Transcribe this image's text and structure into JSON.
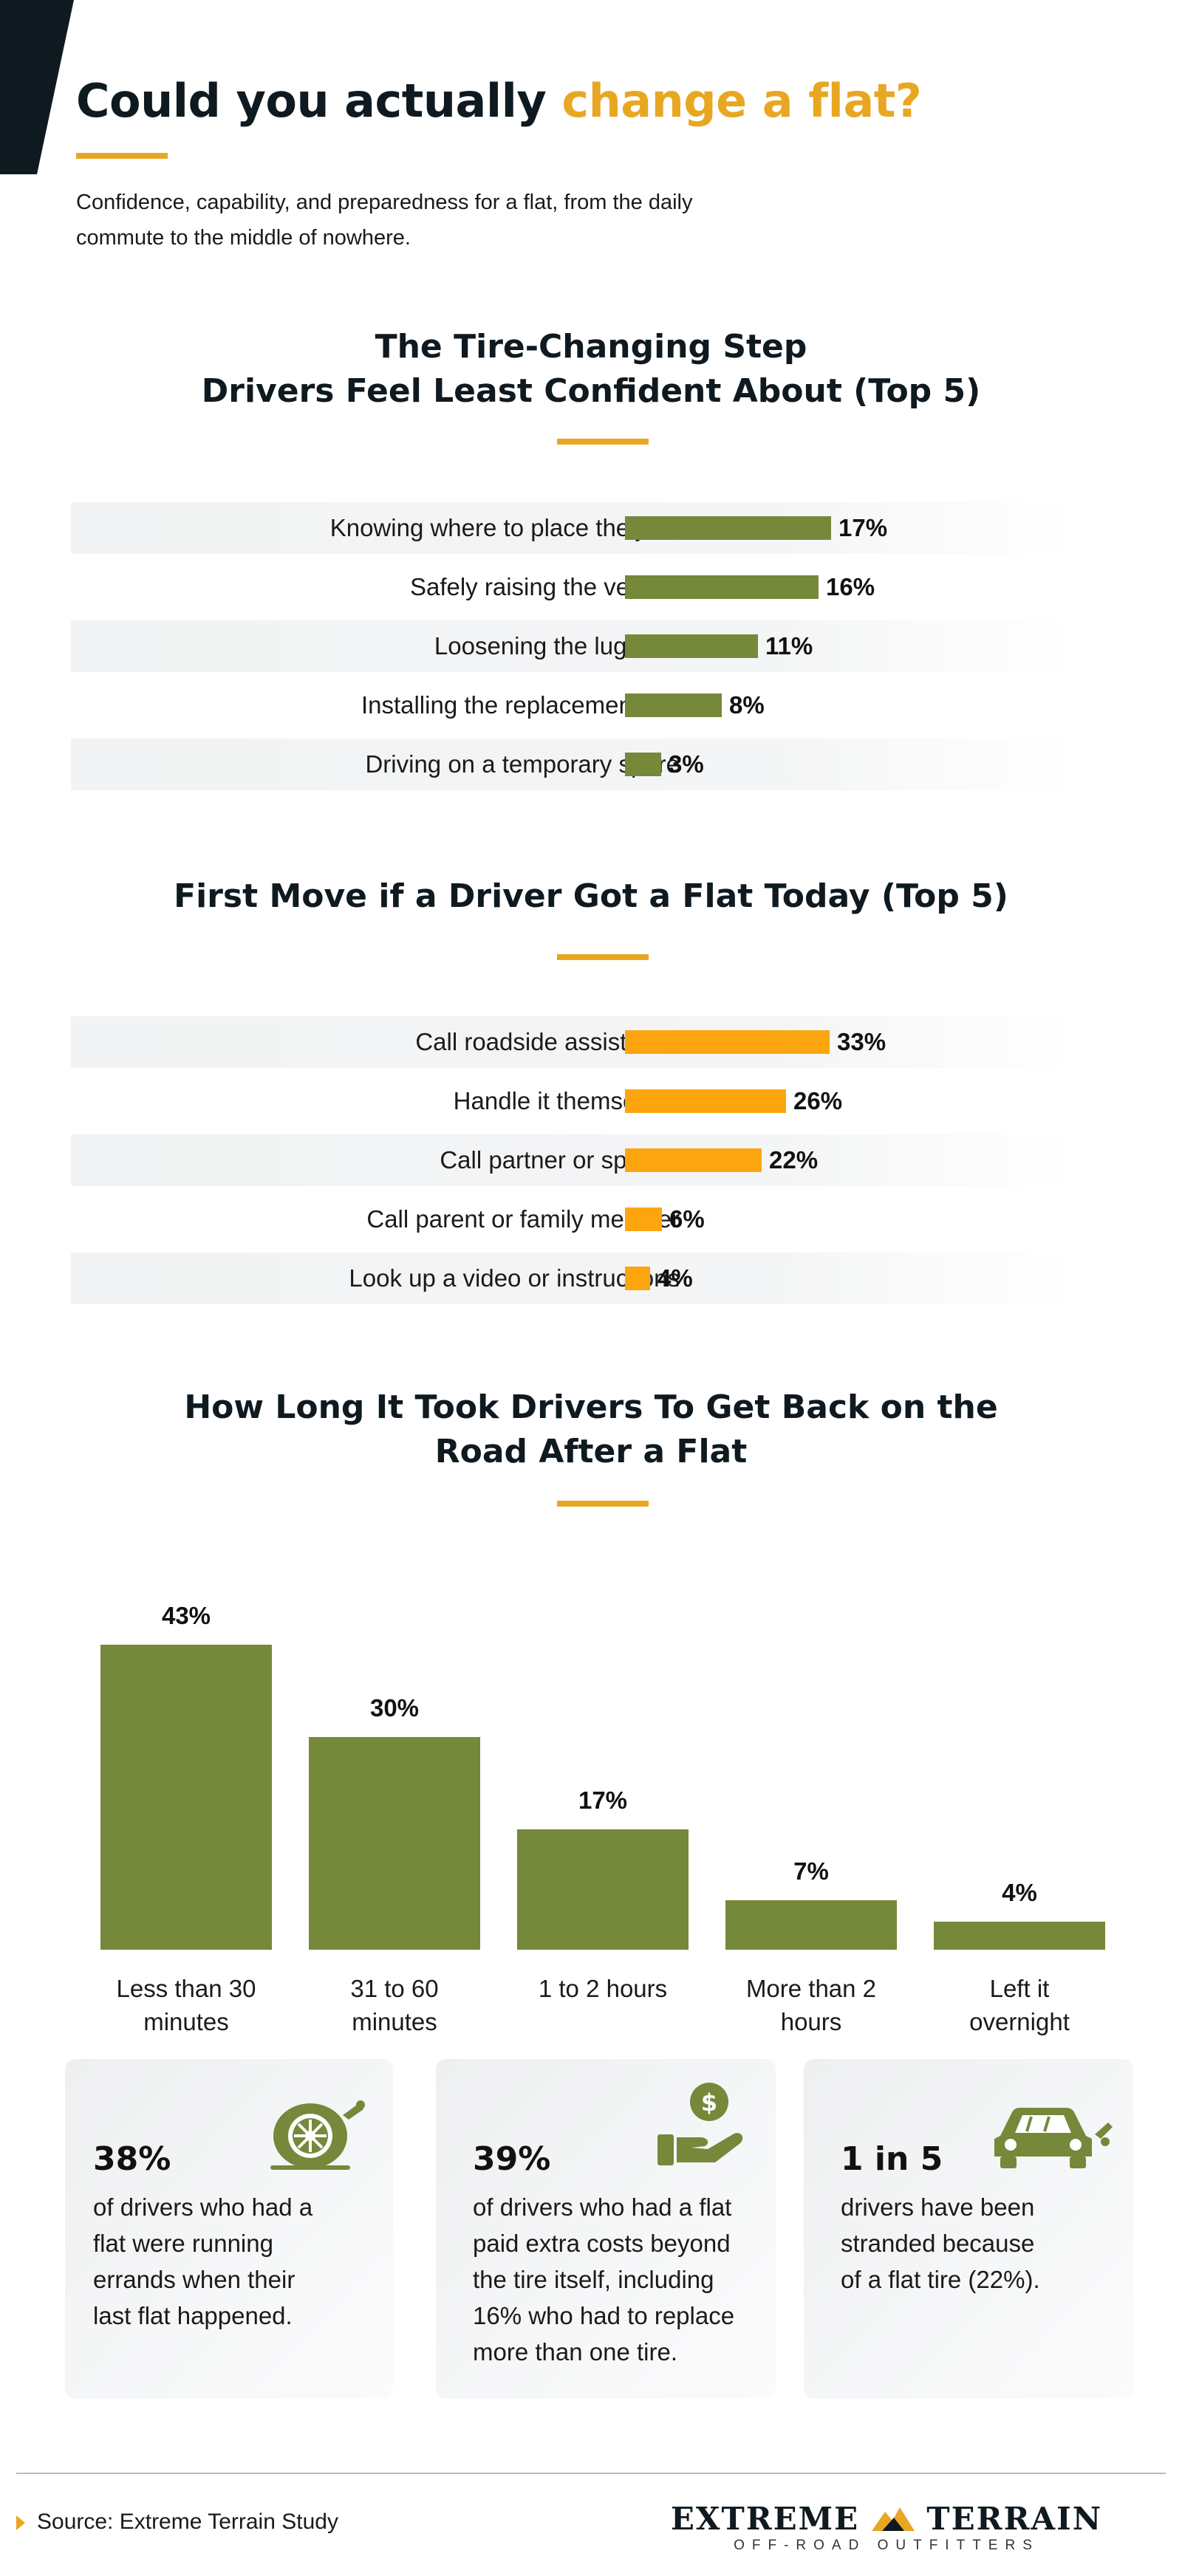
{
  "header": {
    "title_part1": "Could you actually ",
    "title_accent": "change a flat?",
    "subtitle": "Confidence, capability, and preparedness for a flat, from the daily commute to the middle of nowhere."
  },
  "colors": {
    "accent": "#e8a722",
    "green": "#76883a",
    "orange": "#fda50f",
    "dark": "#0f1a20"
  },
  "chart_data": [
    {
      "type": "bar",
      "orientation": "horizontal",
      "title_line1": "The Tire-Changing Step",
      "title_line2": "Drivers Feel Least Confident About (Top 5)",
      "categories": [
        "Knowing where to place the jack",
        "Safely raising the vehicle",
        "Loosening the lug nuts",
        "Installing the replacement tire",
        "Driving on a temporary spare"
      ],
      "values": [
        17,
        16,
        11,
        8,
        3
      ],
      "value_labels": [
        "17%",
        "16%",
        "11%",
        "8%",
        "3%"
      ],
      "color": "#76883a"
    },
    {
      "type": "bar",
      "orientation": "horizontal",
      "title": "First Move if a Driver Got a Flat Today (Top 5)",
      "categories": [
        "Call roadside assistance",
        "Handle it themselves",
        "Call partner or spouse",
        "Call parent or family member",
        "Look up a video or instructions"
      ],
      "values": [
        33,
        26,
        22,
        6,
        4
      ],
      "value_labels": [
        "33%",
        "26%",
        "22%",
        "6%",
        "4%"
      ],
      "color": "#fda50f"
    },
    {
      "type": "bar",
      "orientation": "vertical",
      "title_line1": "How Long It Took Drivers To Get Back on the",
      "title_line2": "Road After a Flat",
      "categories": [
        [
          "Less than 30",
          "minutes"
        ],
        [
          "31 to 60",
          "minutes"
        ],
        [
          "1 to 2 hours"
        ],
        [
          "More than 2",
          "hours"
        ],
        [
          "Left it",
          "overnight"
        ]
      ],
      "values": [
        43,
        30,
        17,
        7,
        4
      ],
      "value_labels": [
        "43%",
        "30%",
        "17%",
        "7%",
        "4%"
      ],
      "color": "#76883a"
    }
  ],
  "stats": [
    {
      "big": "38%",
      "text": [
        "of drivers who had a",
        "flat were running",
        "errands when their",
        "last flat happened."
      ],
      "icon": "flat-tire-icon"
    },
    {
      "big": "39%",
      "text": [
        "of drivers who had a flat",
        "paid extra costs beyond",
        "the tire itself, including",
        "16% who had to replace",
        "more than one tire."
      ],
      "icon": "money-hand-icon"
    },
    {
      "big": "1 in 5",
      "text": [
        "drivers have been",
        "stranded because",
        "of a flat tire (22%)."
      ],
      "icon": "broken-car-icon"
    }
  ],
  "footer": {
    "source": "Source: Extreme Terrain Study",
    "logo_main_left": "EXTREME",
    "logo_main_right": "TERRAIN",
    "logo_sub": "OFF-ROAD OUTFITTERS"
  }
}
